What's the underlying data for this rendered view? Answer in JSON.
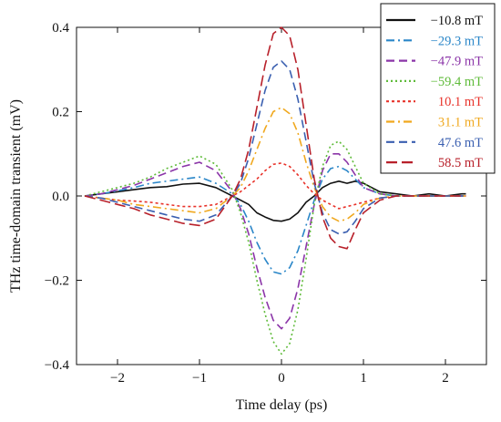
{
  "chart_data": {
    "type": "line",
    "xlabel": "Time delay (ps)",
    "ylabel": "THz time-domain transient (mV)",
    "xlim": [
      -2.5,
      2.5
    ],
    "ylim": [
      -0.4,
      0.4
    ],
    "xticks": [
      -2,
      -1,
      0,
      1,
      2
    ],
    "xtick_labels": [
      "−2",
      "−1",
      "0",
      "1",
      "2"
    ],
    "yticks": [
      -0.4,
      -0.2,
      0.0,
      0.2,
      0.4
    ],
    "ytick_labels": [
      "−0.4",
      "−0.2",
      "0.0",
      "0.2",
      "0.4"
    ],
    "grid": false,
    "legend_position": "top-right",
    "x": [
      -2.4,
      -2.2,
      -2.0,
      -1.8,
      -1.6,
      -1.4,
      -1.2,
      -1.0,
      -0.8,
      -0.6,
      -0.5,
      -0.4,
      -0.3,
      -0.2,
      -0.1,
      0.0,
      0.1,
      0.2,
      0.3,
      0.4,
      0.5,
      0.6,
      0.7,
      0.8,
      0.9,
      1.0,
      1.2,
      1.4,
      1.6,
      1.8,
      2.0,
      2.2,
      2.25
    ],
    "series": [
      {
        "name": "−10.8 mT",
        "color": "#111111",
        "dash": "solid",
        "values": [
          0.0,
          0.005,
          0.01,
          0.015,
          0.02,
          0.022,
          0.028,
          0.03,
          0.02,
          0.0,
          -0.01,
          -0.02,
          -0.04,
          -0.05,
          -0.058,
          -0.06,
          -0.055,
          -0.04,
          -0.015,
          0.0,
          0.02,
          0.03,
          0.035,
          0.03,
          0.035,
          0.03,
          0.01,
          0.005,
          0.0,
          0.005,
          0.0,
          0.005,
          0.005
        ]
      },
      {
        "name": "−29.3 mT",
        "color": "#2a86c8",
        "dash": "dashdot",
        "values": [
          0.0,
          0.005,
          0.012,
          0.02,
          0.03,
          0.035,
          0.04,
          0.045,
          0.03,
          0.005,
          -0.02,
          -0.06,
          -0.11,
          -0.15,
          -0.18,
          -0.185,
          -0.17,
          -0.13,
          -0.07,
          -0.01,
          0.04,
          0.065,
          0.07,
          0.06,
          0.04,
          0.02,
          0.005,
          0.0,
          0.0,
          0.0,
          0.0,
          0.0,
          0.0
        ]
      },
      {
        "name": "−47.9 mT",
        "color": "#8b35a8",
        "dash": "dashed",
        "values": [
          0.0,
          0.005,
          0.015,
          0.025,
          0.04,
          0.055,
          0.07,
          0.08,
          0.06,
          0.01,
          -0.03,
          -0.09,
          -0.17,
          -0.24,
          -0.295,
          -0.315,
          -0.29,
          -0.22,
          -0.12,
          -0.02,
          0.06,
          0.1,
          0.1,
          0.08,
          0.05,
          0.02,
          0.005,
          0.0,
          0.0,
          0.0,
          0.0,
          0.0,
          0.0
        ]
      },
      {
        "name": "−59.4 mT",
        "color": "#5fbb3a",
        "dash": "dotted",
        "values": [
          0.0,
          0.01,
          0.02,
          0.03,
          0.045,
          0.065,
          0.08,
          0.095,
          0.075,
          0.015,
          -0.04,
          -0.11,
          -0.2,
          -0.28,
          -0.345,
          -0.375,
          -0.35,
          -0.27,
          -0.15,
          -0.02,
          0.07,
          0.12,
          0.13,
          0.11,
          0.07,
          0.03,
          0.005,
          0.0,
          0.0,
          0.0,
          0.0,
          0.0,
          0.0
        ]
      },
      {
        "name": "10.1 mT",
        "color": "#e8322a",
        "dash": "densedot",
        "values": [
          0.0,
          -0.005,
          -0.01,
          -0.012,
          -0.015,
          -0.02,
          -0.025,
          -0.025,
          -0.02,
          0.0,
          0.01,
          0.025,
          0.04,
          0.06,
          0.075,
          0.078,
          0.07,
          0.05,
          0.025,
          0.005,
          -0.01,
          -0.02,
          -0.03,
          -0.025,
          -0.02,
          -0.015,
          -0.005,
          0.0,
          0.0,
          0.0,
          0.0,
          0.0,
          0.0
        ]
      },
      {
        "name": "31.1 mT",
        "color": "#f0a81e",
        "dash": "dashdot",
        "values": [
          0.0,
          -0.005,
          -0.01,
          -0.02,
          -0.025,
          -0.03,
          -0.035,
          -0.04,
          -0.03,
          0.0,
          0.02,
          0.06,
          0.11,
          0.16,
          0.2,
          0.21,
          0.195,
          0.15,
          0.08,
          0.02,
          -0.025,
          -0.05,
          -0.06,
          -0.055,
          -0.04,
          -0.02,
          -0.005,
          0.0,
          0.0,
          0.0,
          0.0,
          0.0,
          0.0
        ]
      },
      {
        "name": "47.6 mT",
        "color": "#3a5fb0",
        "dash": "dashed",
        "values": [
          0.0,
          -0.005,
          -0.015,
          -0.025,
          -0.035,
          -0.045,
          -0.055,
          -0.06,
          -0.045,
          0.0,
          0.03,
          0.09,
          0.17,
          0.25,
          0.305,
          0.32,
          0.3,
          0.23,
          0.13,
          0.03,
          -0.04,
          -0.08,
          -0.09,
          -0.085,
          -0.06,
          -0.03,
          -0.005,
          0.0,
          0.0,
          0.0,
          0.0,
          0.0,
          0.0
        ]
      },
      {
        "name": "58.5 mT",
        "color": "#b8202a",
        "dash": "longdash",
        "values": [
          0.0,
          -0.01,
          -0.02,
          -0.03,
          -0.045,
          -0.055,
          -0.065,
          -0.07,
          -0.055,
          0.0,
          0.04,
          0.11,
          0.21,
          0.31,
          0.385,
          0.4,
          0.38,
          0.3,
          0.17,
          0.04,
          -0.05,
          -0.1,
          -0.12,
          -0.125,
          -0.08,
          -0.04,
          -0.01,
          0.0,
          0.0,
          0.0,
          0.0,
          0.0,
          0.0
        ]
      }
    ]
  }
}
